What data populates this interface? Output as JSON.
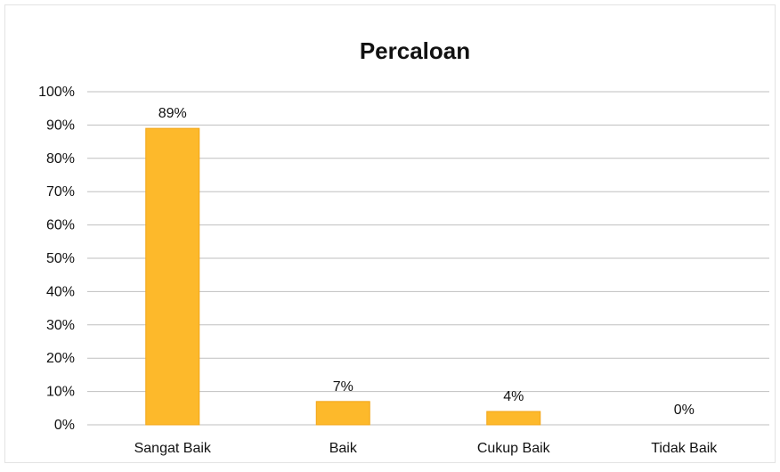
{
  "chart_data": {
    "type": "bar",
    "title": "Percaloan",
    "xlabel": "",
    "ylabel": "",
    "categories": [
      "Sangat Baik",
      "Baik",
      "Cukup Baik",
      "Tidak Baik"
    ],
    "values": [
      89,
      7,
      4,
      0
    ],
    "data_labels": [
      "89%",
      "7%",
      "4%",
      "0%"
    ],
    "ylim": [
      0,
      100
    ],
    "yticks": [
      0,
      10,
      20,
      30,
      40,
      50,
      60,
      70,
      80,
      90,
      100
    ],
    "ytick_labels": [
      "0%",
      "10%",
      "20%",
      "30%",
      "40%",
      "50%",
      "60%",
      "70%",
      "80%",
      "90%",
      "100%"
    ],
    "grid": true,
    "legend": "none",
    "bar_color": "#FDB92B",
    "bar_edge_color": "#F2A516",
    "grid_color": "#BFBFBF"
  }
}
